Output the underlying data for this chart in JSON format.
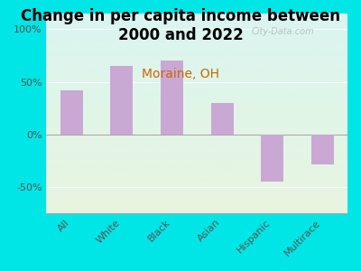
{
  "title": "Change in per capita income between\n2000 and 2022",
  "subtitle": "Moraine, OH",
  "categories": [
    "All",
    "White",
    "Black",
    "Asian",
    "Hispanic",
    "Multirace"
  ],
  "values": [
    42,
    65,
    70,
    30,
    -45,
    -28
  ],
  "bar_color": "#c9a8d4",
  "title_fontsize": 12,
  "subtitle_fontsize": 10,
  "subtitle_color": "#cc6600",
  "ylim": [
    -75,
    115
  ],
  "yticks": [
    -50,
    0,
    50,
    100
  ],
  "ytick_labels": [
    "-50%",
    "0%",
    "50%",
    "100%"
  ],
  "bg_outer": "#00e5e5",
  "gradient_top": "#daf5f0",
  "gradient_bottom": "#e8f5e0",
  "watermark": "City-Data.com"
}
